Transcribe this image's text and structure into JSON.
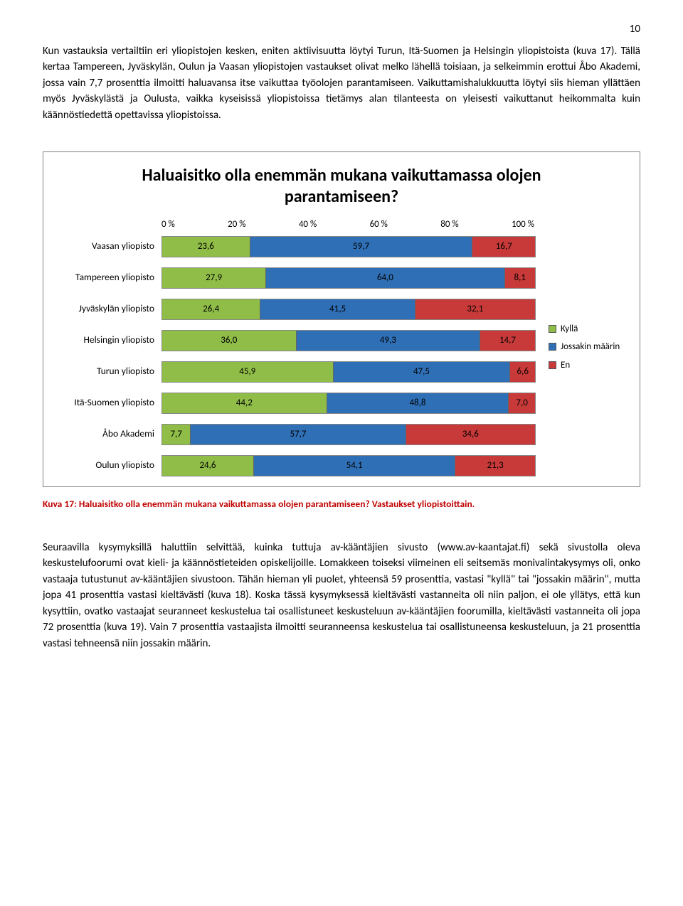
{
  "page_number": "10",
  "intro_paragraph": "Kun vastauksia vertailtiin eri yliopistojen kesken, eniten aktiivisuutta löytyi Turun, Itä-Suomen ja Helsingin yliopistoista (kuva 17). Tällä kertaa Tampereen, Jyväskylän, Oulun ja Vaasan yliopistojen vastaukset olivat melko lähellä toisiaan, ja selkeimmin erottui Åbo Akademi, jossa vain 7,7 prosenttia ilmoitti haluavansa itse vaikuttaa työolojen parantamiseen. Vaikuttamishalukkuutta löytyi siis hieman yllättäen myös Jyväskylästä ja Oulusta, vaikka kyseisissä yliopistoissa tietämys alan tilanteesta on yleisesti vaikuttanut heikommalta kuin käännöstiedettä opettavissa yliopistoissa.",
  "chart": {
    "title": "Haluaisitko olla enemmän mukana vaikuttamassa olojen parantamiseen?",
    "axis_ticks": [
      "0 %",
      "20 %",
      "40 %",
      "60 %",
      "80 %",
      "100 %"
    ],
    "colors": {
      "yes": "#8fbd47",
      "some": "#2f6fb6",
      "no": "#c83a39"
    },
    "legend": [
      {
        "key": "yes",
        "label": "Kyllä"
      },
      {
        "key": "some",
        "label": "Jossakin määrin"
      },
      {
        "key": "no",
        "label": "En"
      }
    ],
    "rows": [
      {
        "label": "Vaasan yliopisto",
        "values": [
          23.6,
          59.7,
          16.7
        ],
        "labels": [
          "23,6",
          "59,7",
          "16,7"
        ]
      },
      {
        "label": "Tampereen yliopisto",
        "values": [
          27.9,
          64.0,
          8.1
        ],
        "labels": [
          "27,9",
          "64,0",
          "8,1"
        ]
      },
      {
        "label": "Jyväskylän yliopisto",
        "values": [
          26.4,
          41.5,
          32.1
        ],
        "labels": [
          "26,4",
          "41,5",
          "32,1"
        ]
      },
      {
        "label": "Helsingin yliopisto",
        "values": [
          36.0,
          49.3,
          14.7
        ],
        "labels": [
          "36,0",
          "49,3",
          "14,7"
        ]
      },
      {
        "label": "Turun yliopisto",
        "values": [
          45.9,
          47.5,
          6.6
        ],
        "labels": [
          "45,9",
          "47,5",
          "6,6"
        ]
      },
      {
        "label": "Itä-Suomen yliopisto",
        "values": [
          44.2,
          48.8,
          7.0
        ],
        "labels": [
          "44,2",
          "48,8",
          "7,0"
        ]
      },
      {
        "label": "Åbo Akademi",
        "values": [
          7.7,
          57.7,
          34.6
        ],
        "labels": [
          "7,7",
          "57,7",
          "34,6"
        ]
      },
      {
        "label": "Oulun yliopisto",
        "values": [
          24.6,
          54.1,
          21.3
        ],
        "labels": [
          "24,6",
          "54,1",
          "21,3"
        ]
      }
    ]
  },
  "caption": "Kuva 17: Haluaisitko olla enemmän mukana vaikuttamassa olojen parantamiseen? Vastaukset yliopistoittain.",
  "second_paragraph": "Seuraavilla kysymyksillä haluttiin selvittää, kuinka tuttuja av-kääntäjien sivusto (www.av-kaantajat.fi) sekä sivustolla oleva keskustelufoorumi ovat kieli- ja käännöstieteiden opiskelijoille. Lomakkeen toiseksi viimeinen eli seitsemäs monivalintakysymys oli, onko vastaaja tutustunut av-kääntäjien sivustoon. Tähän hieman yli puolet, yhteensä 59 prosenttia, vastasi \"kyllä\" tai \"jossakin määrin\", mutta jopa 41 prosenttia vastasi kieltävästi (kuva 18). Koska tässä kysymyksessä kieltävästi vastanneita oli niin paljon, ei ole yllätys, että kun kysyttiin, ovatko vastaajat seuranneet keskustelua tai osallistuneet keskusteluun av-kääntäjien foorumilla, kieltävästi vastanneita oli jopa 72 prosenttia (kuva 19). Vain 7 prosenttia vastaajista ilmoitti seuranneensa keskustelua tai osallistuneensa keskusteluun, ja 21 prosenttia vastasi tehneensä niin jossakin määrin."
}
